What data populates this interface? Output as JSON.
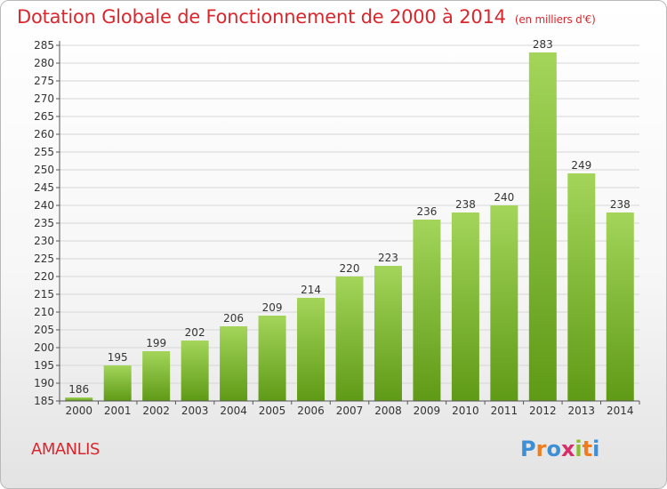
{
  "title": "Dotation Globale de Fonctionnement de 2000 à 2014",
  "subtitle": "(en milliers d'€)",
  "city": "AMANLIS",
  "logo": {
    "letters": [
      "P",
      "r",
      "o",
      "x",
      "i",
      "t",
      "i"
    ],
    "colors": [
      "#3d8fd6",
      "#f07c1e",
      "#3d8fd6",
      "#d92c6a",
      "#8dbf2c",
      "#f07c1e",
      "#3d8fd6"
    ]
  },
  "colors": {
    "title": "#d9272e",
    "bar_top": "#a3d55a",
    "bar_bottom": "#5f9a16",
    "grid": "#d6d6d6",
    "axis": "#555555"
  },
  "chart_data": {
    "type": "bar",
    "title": "Dotation Globale de Fonctionnement de 2000 à 2014",
    "subtitle": "(en milliers d'€)",
    "xlabel": "",
    "ylabel": "",
    "categories": [
      "2000",
      "2001",
      "2002",
      "2003",
      "2004",
      "2005",
      "2006",
      "2007",
      "2008",
      "2009",
      "2010",
      "2011",
      "2012",
      "2013",
      "2014"
    ],
    "values": [
      186,
      195,
      199,
      202,
      206,
      209,
      214,
      220,
      223,
      236,
      238,
      240,
      283,
      249,
      238
    ],
    "ylim": [
      185,
      285
    ],
    "ytick_step": 5,
    "grid": true,
    "legend": "none"
  }
}
